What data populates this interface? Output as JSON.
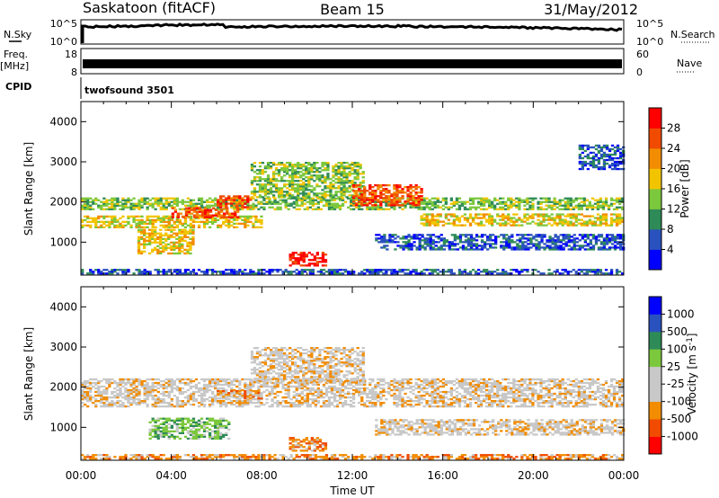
{
  "header": {
    "title": "Saskatoon (fitACF)",
    "beam": "Beam 15",
    "date": "31/May/2012"
  },
  "status": {
    "nsky_label": "N.Sky",
    "nsky_ticks": [
      "10^5",
      "10^0"
    ],
    "nsearch_label": "N.Search",
    "nsearch_ticks": [
      "10^5",
      "10^0"
    ],
    "freq_label": "Freq.",
    "freq_unit": "[MHz]",
    "freq_ticks": [
      "18",
      "8"
    ],
    "nave_label": "Nave",
    "nave_ticks": [
      "60",
      "0"
    ],
    "cpid_label": "CPID",
    "cpid_value": "twofsound 3501"
  },
  "chart_data": [
    {
      "type": "heatmap",
      "name": "power",
      "title": "",
      "xlabel": "",
      "ylabel": "Slant Range [km]",
      "xlim": [
        0,
        24
      ],
      "ylim": [
        180,
        4500
      ],
      "y_ticks": [
        1000,
        2000,
        3000,
        4000
      ],
      "colorbar": {
        "label": "Power [dB]",
        "ticks": [
          "28",
          "24",
          "20",
          "16",
          "12",
          "8",
          "4"
        ],
        "colors": [
          "#0000ff",
          "#2a52be",
          "#2e8b57",
          "#7cc83c",
          "#f2c400",
          "#f28c00",
          "#f04b00",
          "#ff0000"
        ]
      },
      "bands": [
        {
          "t0": 0.0,
          "t1": 24.0,
          "r0": 1800,
          "r1": 2100,
          "level": 3
        },
        {
          "t0": 0.0,
          "t1": 8.0,
          "r0": 1350,
          "r1": 1650,
          "level": 4
        },
        {
          "t0": 4.0,
          "t1": 7.0,
          "r0": 1600,
          "r1": 1850,
          "level": 6
        },
        {
          "t0": 6.0,
          "t1": 7.5,
          "r0": 1850,
          "r1": 2150,
          "level": 6
        },
        {
          "t0": 2.5,
          "t1": 5.0,
          "r0": 700,
          "r1": 1300,
          "level": 4
        },
        {
          "t0": 7.5,
          "t1": 12.5,
          "r0": 2100,
          "r1": 3000,
          "level": 3
        },
        {
          "t0": 12.0,
          "t1": 15.0,
          "r0": 1900,
          "r1": 2400,
          "level": 6
        },
        {
          "t0": 9.2,
          "t1": 10.8,
          "r0": 400,
          "r1": 750,
          "level": 7
        },
        {
          "t0": 15.0,
          "t1": 24.0,
          "r0": 1400,
          "r1": 1700,
          "level": 4
        },
        {
          "t0": 13.0,
          "t1": 24.0,
          "r0": 800,
          "r1": 1200,
          "level": 1
        },
        {
          "t0": 0.0,
          "t1": 24.0,
          "r0": 200,
          "r1": 320,
          "level": 1
        },
        {
          "t0": 22.0,
          "t1": 24.0,
          "r0": 2800,
          "r1": 3400,
          "level": 1
        }
      ]
    },
    {
      "type": "heatmap",
      "name": "velocity",
      "title": "",
      "xlabel": "Time UT",
      "ylabel": "Slant Range [km]",
      "xlim": [
        0,
        24
      ],
      "ylim": [
        180,
        4500
      ],
      "x_ticks": [
        "00:00",
        "04:00",
        "08:00",
        "12:00",
        "16:00",
        "20:00",
        "00:00"
      ],
      "y_ticks": [
        1000,
        2000,
        3000,
        4000
      ],
      "colorbar": {
        "label": "Velocity [m s^-1]",
        "ticks": [
          "1000",
          "500",
          "100",
          "25",
          "-25",
          "-100",
          "-500",
          "-1000"
        ],
        "colors": [
          "#ff0000",
          "#f04b00",
          "#f28c00",
          "#c8c8c8",
          "#c8c8c8",
          "#7cc83c",
          "#2e8b57",
          "#2a52be",
          "#0000ff"
        ]
      },
      "bands": [
        {
          "t0": 0.0,
          "t1": 24.0,
          "r0": 1500,
          "r1": 2200,
          "level": 3
        },
        {
          "t0": 7.5,
          "t1": 12.5,
          "r0": 2100,
          "r1": 3000,
          "level": 3
        },
        {
          "t0": 3.0,
          "t1": 6.5,
          "r0": 700,
          "r1": 1200,
          "level": 5
        },
        {
          "t0": 9.2,
          "t1": 10.8,
          "r0": 400,
          "r1": 750,
          "level": 2
        },
        {
          "t0": 6.0,
          "t1": 8.0,
          "r0": 1700,
          "r1": 1900,
          "level": 2
        },
        {
          "t0": 13.0,
          "t1": 24.0,
          "r0": 800,
          "r1": 1200,
          "level": 3
        },
        {
          "t0": 0.0,
          "t1": 24.0,
          "r0": 200,
          "r1": 320,
          "level": 2
        }
      ]
    }
  ]
}
